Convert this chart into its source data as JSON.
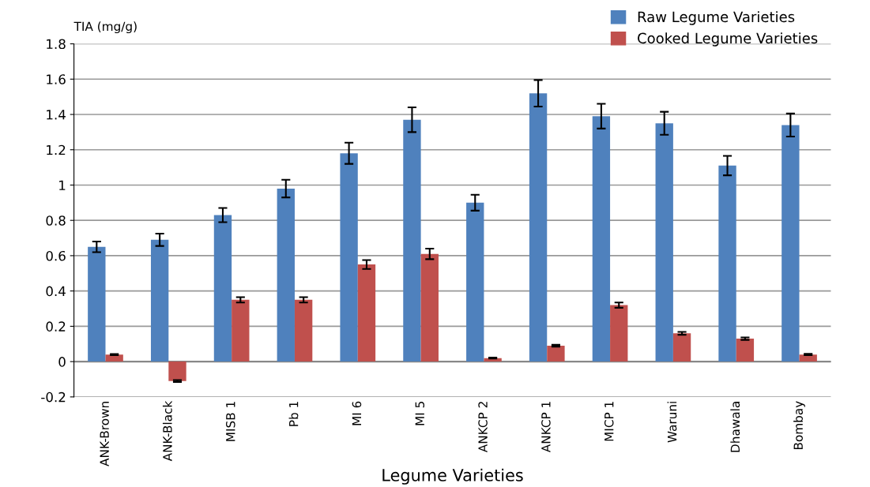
{
  "chart_data": {
    "type": "bar",
    "categories": [
      "ANK-Brown",
      "ANK-Black",
      "MISB 1",
      "Pb 1",
      "MI 6",
      "MI 5",
      "ANKCP 2",
      "ANKCP 1",
      "MICP 1",
      "Waruni",
      "Dhawala",
      "Bombay"
    ],
    "series": [
      {
        "name": "Raw Legume Varieties",
        "color": "#4f81bd",
        "values": [
          0.65,
          0.69,
          0.83,
          0.98,
          1.18,
          1.37,
          0.9,
          1.52,
          1.39,
          1.35,
          1.11,
          1.34
        ],
        "errors": [
          0.03,
          0.035,
          0.04,
          0.05,
          0.06,
          0.07,
          0.045,
          0.075,
          0.07,
          0.065,
          0.055,
          0.065
        ]
      },
      {
        "name": "Cooked Legume Varieties",
        "color": "#c0504d",
        "values": [
          0.04,
          -0.11,
          0.35,
          0.35,
          0.55,
          0.61,
          0.02,
          0.09,
          0.32,
          0.16,
          0.13,
          0.04
        ],
        "errors": [
          0.003,
          0.005,
          0.015,
          0.015,
          0.025,
          0.03,
          0.003,
          0.005,
          0.015,
          0.008,
          0.007,
          0.004
        ]
      }
    ],
    "ylabel": "TIA (mg/g)",
    "xlabel": "Legume Varieties",
    "ylim": [
      -0.2,
      1.8
    ],
    "yticks": [
      {
        "value": -0.2,
        "label": "-0.2"
      },
      0,
      0.2,
      0.4,
      0.6,
      0.8,
      1,
      1.2,
      1.4,
      1.6,
      1.8
    ],
    "grid": "y",
    "legend": "top right"
  }
}
